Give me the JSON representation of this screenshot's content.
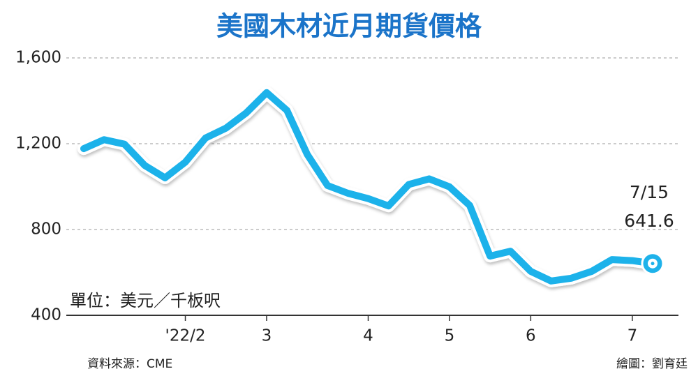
{
  "chart_data": {
    "type": "line",
    "title": "美國木材近月期貨價格",
    "unit_note": "單位：美元／千板呎",
    "source": "資料來源：CME",
    "credit": "繪圖：劉育廷",
    "annotation": "7/15",
    "categories": [
      null,
      null,
      null,
      null,
      null,
      "'22/2",
      null,
      null,
      null,
      "3",
      null,
      null,
      null,
      null,
      "4",
      null,
      null,
      null,
      "5",
      null,
      null,
      null,
      "6",
      null,
      null,
      null,
      null,
      "7",
      null
    ],
    "values": [
      1177,
      1219,
      1198,
      1099,
      1041,
      1114,
      1227,
      1273,
      1344,
      1438,
      1355,
      1150,
      1005,
      969,
      944,
      910,
      1010,
      1036,
      999,
      912,
      676,
      699,
      605,
      560,
      573,
      605,
      660,
      655,
      641.6
    ],
    "color": "#1eb2ea",
    "ylim": [
      400,
      1600
    ],
    "yticks": [
      400,
      800,
      {
        "value": 1200,
        "label": "1,200"
      },
      {
        "value": 1600,
        "label": "1,600"
      }
    ],
    "grid": true
  }
}
